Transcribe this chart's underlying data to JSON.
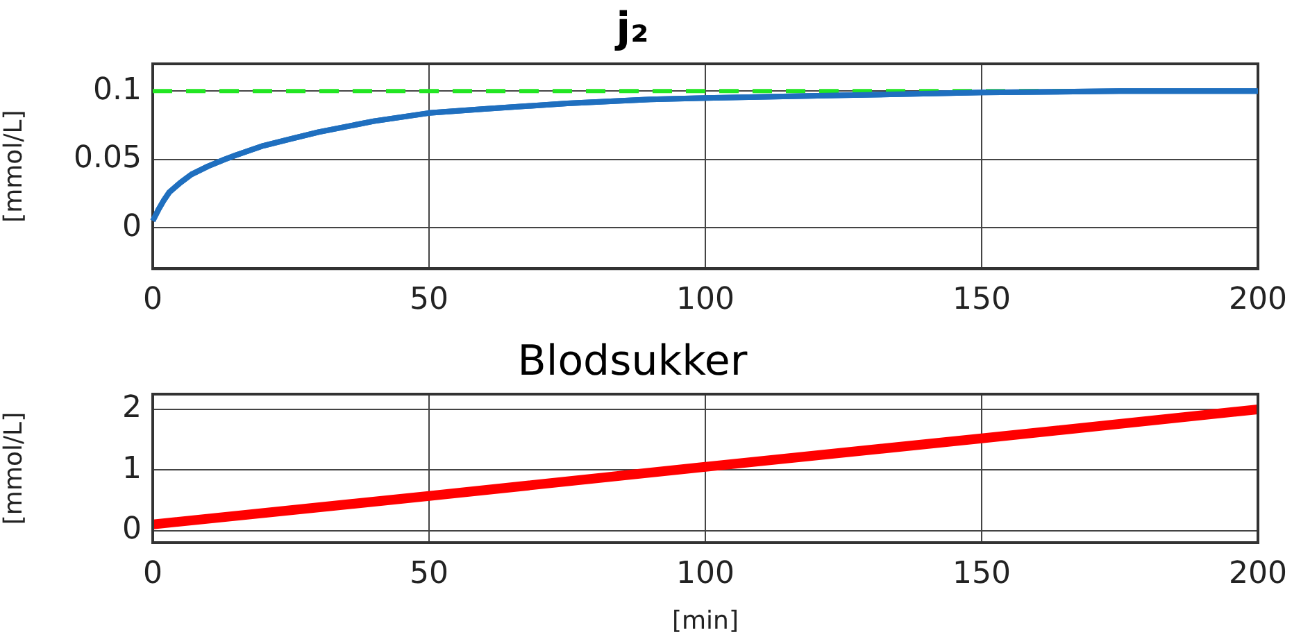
{
  "chart_data": [
    {
      "type": "line",
      "title": "j₂",
      "ylabel": "[mmol/L]",
      "x": [
        0,
        1,
        2,
        3,
        5,
        7,
        10,
        13,
        15,
        20,
        25,
        30,
        40,
        50,
        60,
        75,
        90,
        100,
        125,
        150,
        175,
        200
      ],
      "series": [
        {
          "color": "#1f6fbf",
          "values": [
            0.005,
            0.013,
            0.02,
            0.026,
            0.033,
            0.039,
            0.045,
            0.05,
            0.053,
            0.06,
            0.065,
            0.07,
            0.078,
            0.084,
            0.087,
            0.091,
            0.094,
            0.095,
            0.097,
            0.099,
            0.1,
            0.1
          ]
        }
      ],
      "ref_lines": [
        {
          "axis": "y",
          "value": 0.1,
          "color": "#22e622",
          "line_style": "dashed"
        }
      ],
      "xlim": [
        0,
        200
      ],
      "xticks": [
        0,
        50,
        100,
        150,
        200
      ],
      "ylim": [
        -0.03,
        0.12
      ],
      "yticks": [
        0,
        0.05,
        0.1
      ],
      "grid": true,
      "legend": false
    },
    {
      "type": "line",
      "title": "Blodsukker",
      "xlabel": "[min]",
      "ylabel": "[mmol/L]",
      "x": [
        0,
        50,
        100,
        150,
        200
      ],
      "series": [
        {
          "color": "#ff0000",
          "values": [
            0.1,
            0.57,
            1.05,
            1.52,
            2.0
          ]
        }
      ],
      "xlim": [
        0,
        200
      ],
      "xticks": [
        0,
        50,
        100,
        150,
        200
      ],
      "ylim": [
        -0.2,
        2.25
      ],
      "yticks": [
        0,
        1,
        2
      ],
      "grid": true,
      "legend": false
    }
  ]
}
